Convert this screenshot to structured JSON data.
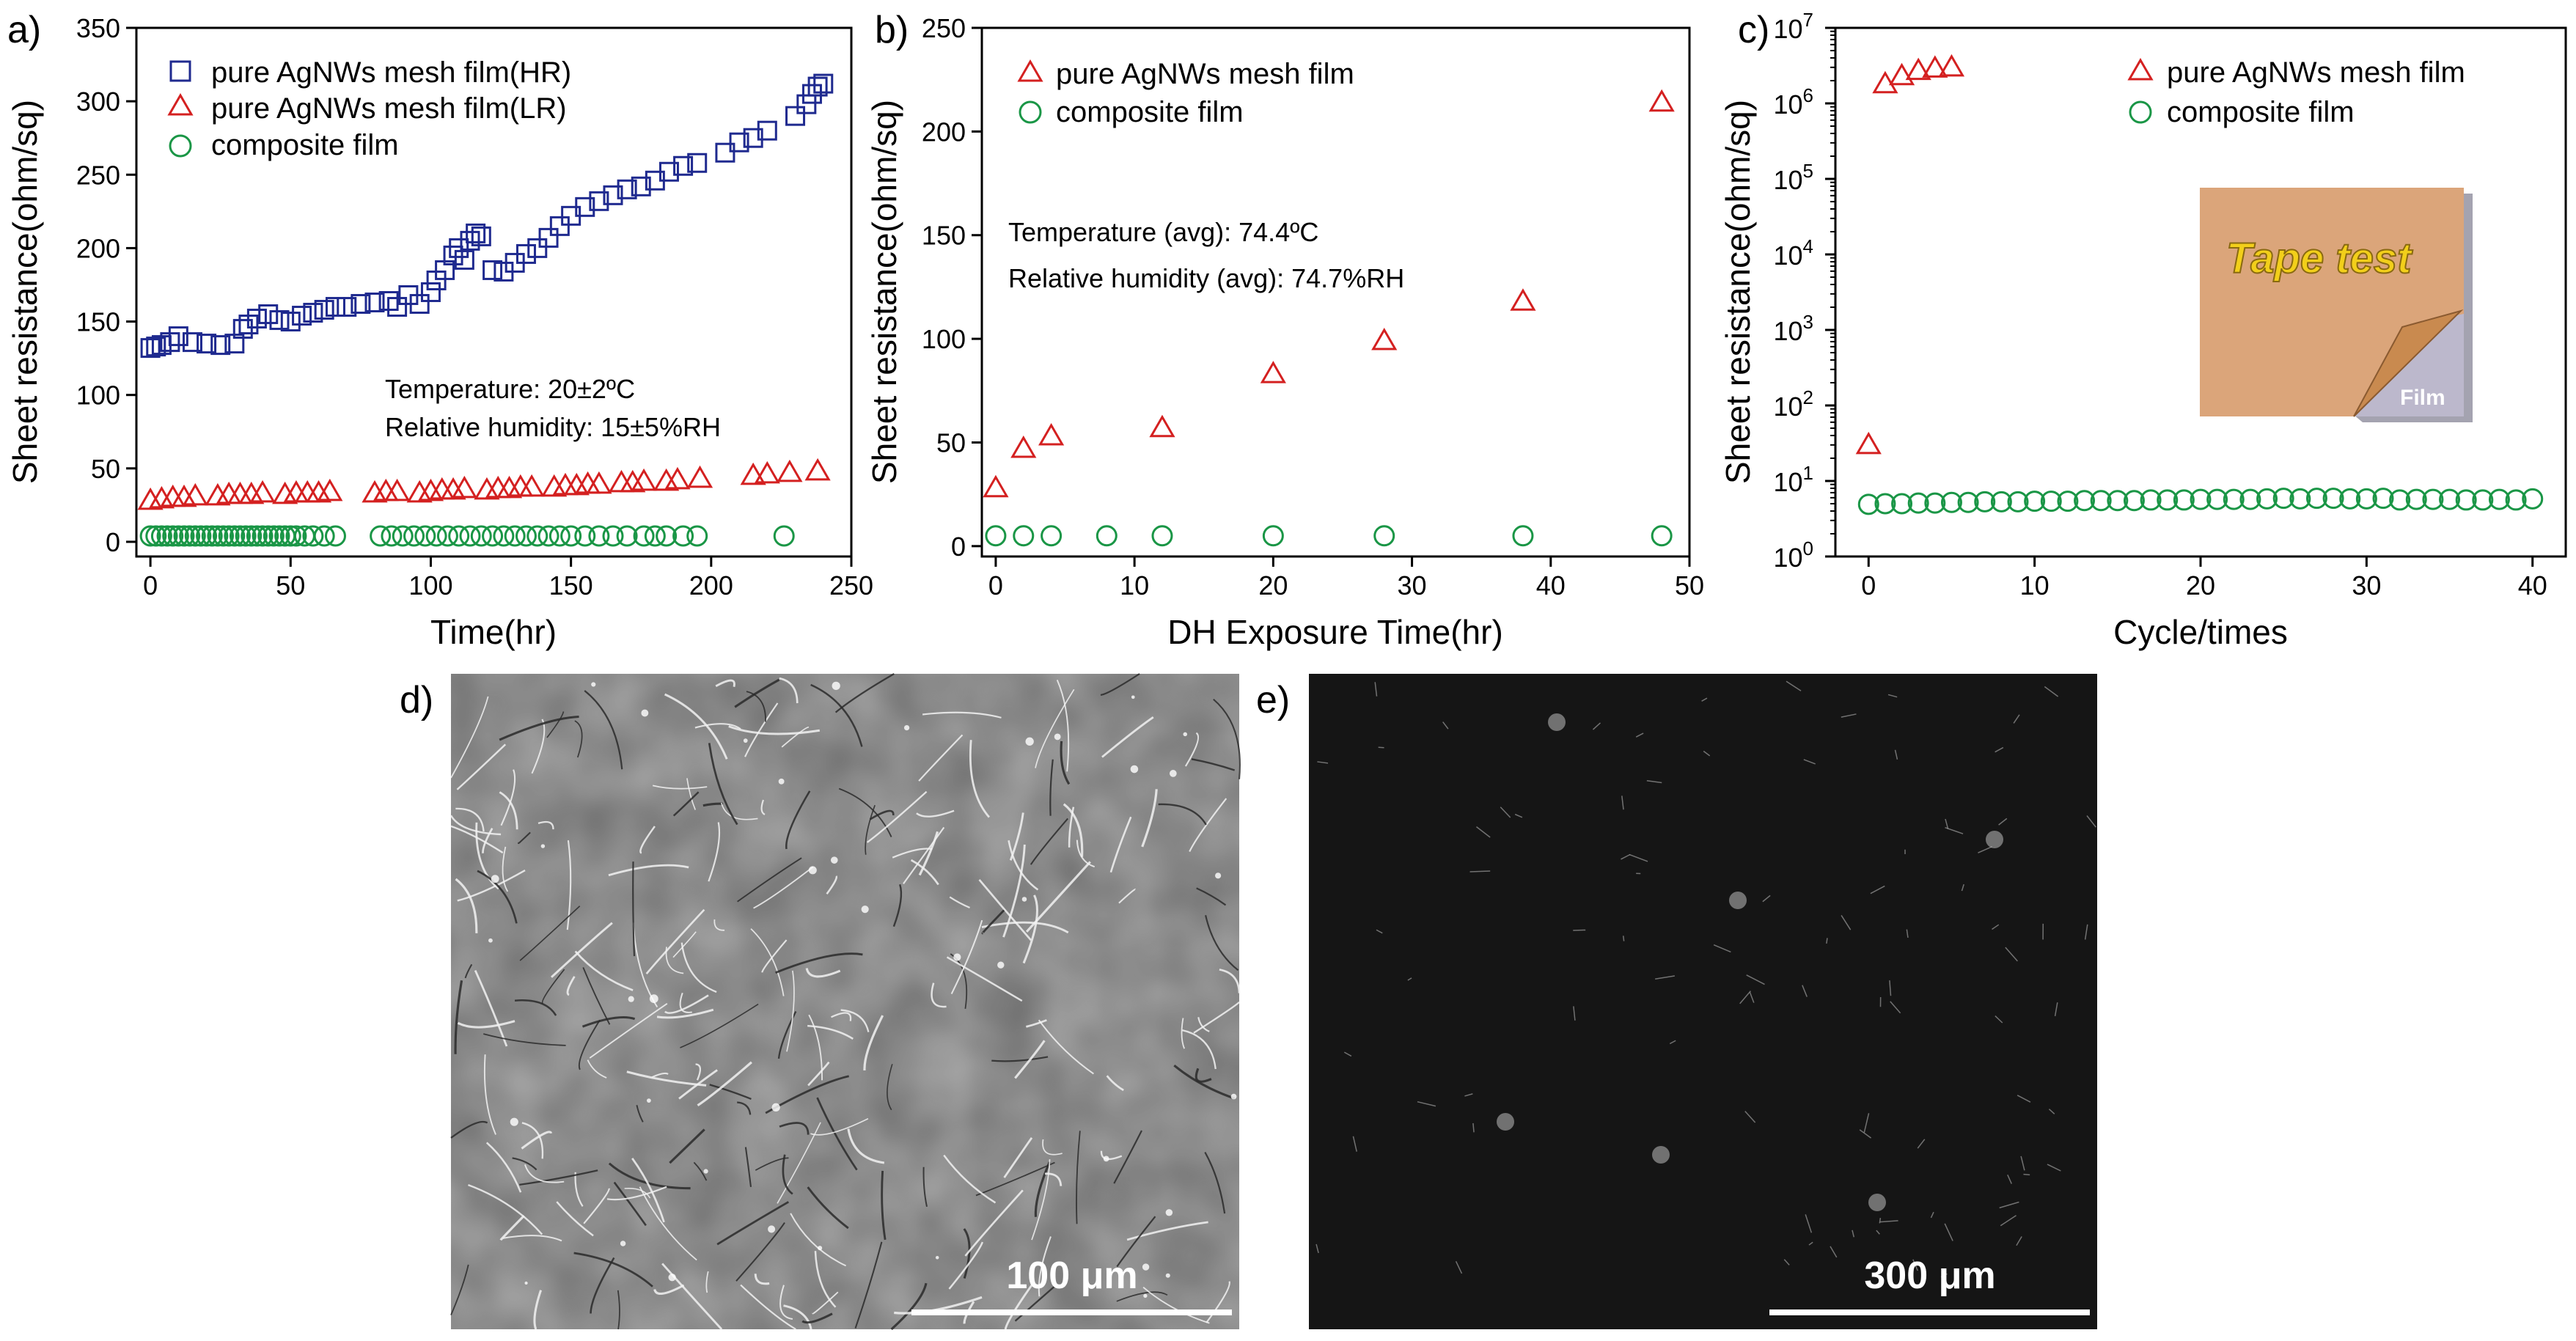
{
  "colors": {
    "hr": "#1f2a8f",
    "lr": "#d42020",
    "comp": "#1a9646",
    "tape": "#dba57a",
    "tape_text": "#f2cf1a"
  },
  "panel_labels": {
    "a": "a)",
    "b": "b)",
    "c": "c)",
    "d": "d)",
    "e": "e)"
  },
  "chart_data": [
    {
      "id": "a",
      "type": "scatter",
      "xlabel": "Time(hr)",
      "ylabel": "Sheet resistance(ohm/sq)",
      "xlim": [
        -5,
        250
      ],
      "ylim": [
        -10,
        350
      ],
      "xticks": [
        0,
        50,
        100,
        150,
        200,
        250
      ],
      "yticks": [
        0,
        50,
        100,
        150,
        200,
        250,
        300,
        350
      ],
      "legend": [
        "pure AgNWs mesh film(HR)",
        "pure AgNWs mesh film(LR)",
        "composite film"
      ],
      "annotations": [
        "Temperature: 20±2ºC",
        "Relative humidity: 15±5%RH"
      ],
      "series": [
        {
          "name": "pure AgNWs mesh film(HR)",
          "marker": "square",
          "x": [
            0,
            2,
            4,
            7,
            10,
            15,
            20,
            25,
            30,
            33,
            35,
            38,
            42,
            46,
            50,
            54,
            58,
            62,
            66,
            70,
            75,
            80,
            85,
            88,
            92,
            96,
            100,
            102,
            105,
            108,
            110,
            112,
            114,
            116,
            118,
            122,
            126,
            130,
            134,
            138,
            142,
            146,
            150,
            155,
            160,
            165,
            170,
            175,
            180,
            185,
            190,
            195,
            205,
            210,
            215,
            220,
            230,
            234,
            236,
            238,
            240
          ],
          "y": [
            132,
            133,
            134,
            136,
            140,
            136,
            135,
            134,
            135,
            145,
            148,
            152,
            155,
            151,
            150,
            154,
            156,
            158,
            160,
            160,
            162,
            163,
            164,
            160,
            168,
            162,
            170,
            178,
            185,
            195,
            200,
            192,
            205,
            210,
            208,
            185,
            184,
            190,
            196,
            200,
            207,
            215,
            222,
            228,
            232,
            236,
            240,
            242,
            246,
            252,
            256,
            258,
            265,
            272,
            275,
            280,
            290,
            298,
            305,
            310,
            312
          ]
        },
        {
          "name": "pure AgNWs mesh film(LR)",
          "marker": "triangle",
          "x": [
            0,
            4,
            8,
            12,
            16,
            24,
            28,
            32,
            36,
            40,
            48,
            52,
            56,
            60,
            64,
            80,
            84,
            88,
            96,
            100,
            104,
            108,
            112,
            120,
            124,
            128,
            132,
            136,
            144,
            148,
            152,
            156,
            160,
            168,
            172,
            176,
            184,
            188,
            196,
            215,
            220,
            228,
            238
          ],
          "y": [
            28,
            29,
            30,
            30,
            31,
            31,
            32,
            32,
            32,
            33,
            32,
            33,
            33,
            33,
            34,
            33,
            34,
            34,
            33,
            34,
            35,
            35,
            36,
            35,
            36,
            36,
            37,
            37,
            37,
            38,
            38,
            39,
            39,
            40,
            40,
            41,
            41,
            42,
            43,
            45,
            46,
            47,
            48
          ]
        },
        {
          "name": "composite film",
          "marker": "circle",
          "x": [
            0,
            2,
            4,
            6,
            8,
            10,
            12,
            14,
            16,
            18,
            20,
            22,
            24,
            26,
            28,
            30,
            32,
            34,
            36,
            38,
            40,
            42,
            44,
            46,
            48,
            50,
            52,
            55,
            58,
            62,
            66,
            82,
            86,
            90,
            94,
            98,
            102,
            106,
            110,
            114,
            118,
            122,
            126,
            130,
            134,
            138,
            142,
            146,
            150,
            155,
            160,
            165,
            170,
            176,
            180,
            184,
            190,
            195,
            226
          ],
          "y": [
            4,
            4,
            4,
            4,
            4,
            4,
            4,
            4,
            4,
            4,
            4,
            4,
            4,
            4,
            4,
            4,
            4,
            4,
            4,
            4,
            4,
            4,
            4,
            4,
            4,
            4,
            4,
            4,
            4,
            4,
            4,
            4,
            4,
            4,
            4,
            4,
            4,
            4,
            4,
            4,
            4,
            4,
            4,
            4,
            4,
            4,
            4,
            4,
            4,
            4,
            4,
            4,
            4,
            4,
            4,
            4,
            4,
            4,
            4
          ]
        }
      ]
    },
    {
      "id": "b",
      "type": "scatter",
      "xlabel": "DH Exposure Time(hr)",
      "ylabel": "Sheet resistance(ohm/sq)",
      "xlim": [
        -1,
        50
      ],
      "ylim": [
        -5,
        250
      ],
      "xticks": [
        0,
        10,
        20,
        30,
        40,
        50
      ],
      "yticks": [
        0,
        50,
        100,
        150,
        200,
        250
      ],
      "legend": [
        "pure AgNWs mesh film",
        "composite film"
      ],
      "annotations": [
        "Temperature (avg): 74.4ºC",
        "Relative humidity (avg): 74.7%RH"
      ],
      "series": [
        {
          "name": "pure AgNWs mesh film",
          "marker": "triangle",
          "x": [
            0,
            2,
            4,
            12,
            20,
            28,
            38,
            48
          ],
          "y": [
            28,
            47,
            53,
            57,
            83,
            99,
            118,
            214
          ]
        },
        {
          "name": "composite film",
          "marker": "circle",
          "x": [
            0,
            2,
            4,
            8,
            12,
            20,
            28,
            38,
            48
          ],
          "y": [
            5,
            5,
            5,
            5,
            5,
            5,
            5,
            5,
            5
          ]
        }
      ]
    },
    {
      "id": "c",
      "type": "scatter",
      "yscale": "log",
      "xlabel": "Cycle/times",
      "ylabel": "Sheet resistance(ohm/sq)",
      "xlim": [
        -2,
        42
      ],
      "ylim": [
        1,
        10000000
      ],
      "xticks": [
        0,
        10,
        20,
        30,
        40
      ],
      "yticks": [
        "10^0",
        "10^1",
        "10^2",
        "10^3",
        "10^4",
        "10^5",
        "10^6",
        "10^7"
      ],
      "legend": [
        "pure AgNWs mesh film",
        "composite film"
      ],
      "inset": {
        "title": "Tape test",
        "label": "Film"
      },
      "series": [
        {
          "name": "pure AgNWs mesh film",
          "marker": "triangle",
          "x": [
            0,
            1,
            2,
            3,
            4,
            5
          ],
          "y": [
            30,
            1800000,
            2300000,
            2700000,
            2900000,
            3000000
          ]
        },
        {
          "name": "composite film",
          "marker": "circle",
          "x": [
            0,
            1,
            2,
            3,
            4,
            5,
            6,
            7,
            8,
            9,
            10,
            11,
            12,
            13,
            14,
            15,
            16,
            17,
            18,
            19,
            20,
            21,
            22,
            23,
            24,
            25,
            26,
            27,
            28,
            29,
            30,
            31,
            32,
            33,
            34,
            35,
            36,
            37,
            38,
            39,
            40
          ],
          "y": [
            4.9,
            5.0,
            5.0,
            5.1,
            5.1,
            5.2,
            5.2,
            5.3,
            5.3,
            5.3,
            5.4,
            5.4,
            5.4,
            5.5,
            5.5,
            5.5,
            5.5,
            5.6,
            5.6,
            5.6,
            5.7,
            5.7,
            5.7,
            5.7,
            5.8,
            5.9,
            5.8,
            5.9,
            5.9,
            5.8,
            5.8,
            5.9,
            5.6,
            5.7,
            5.7,
            5.7,
            5.6,
            5.6,
            5.7,
            5.6,
            5.8
          ]
        }
      ]
    }
  ],
  "micrographs": {
    "d": {
      "scale_label": "100 μm"
    },
    "e": {
      "scale_label": "300 μm"
    }
  }
}
